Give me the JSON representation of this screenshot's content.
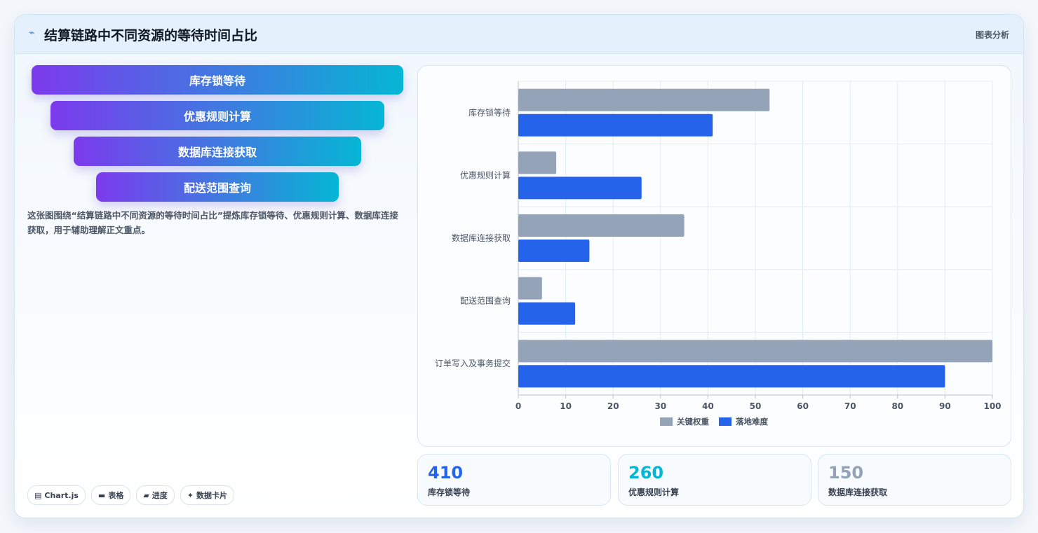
{
  "header": {
    "icon": "sparkline-icon",
    "icon_glyph": "⌁",
    "title": "结算链路中不同资源的等待时间占比",
    "tag": "图表分析"
  },
  "funnel": {
    "items": [
      "库存锁等待",
      "优惠规则计算",
      "数据库连接获取",
      "配送范围查询"
    ]
  },
  "description": "这张图围绕“结算链路中不同资源的等待时间占比”提炼库存锁等待、优惠规则计算、数据库连接获取，用于辅助理解正文重点。",
  "chips": [
    {
      "icon": "chart-icon",
      "glyph": "▤",
      "label": "Chart.js"
    },
    {
      "icon": "table-icon",
      "glyph": "▬",
      "label": "表格"
    },
    {
      "icon": "progress-icon",
      "glyph": "▰",
      "label": "进度"
    },
    {
      "icon": "card-icon",
      "glyph": "✦",
      "label": "数据卡片"
    }
  ],
  "stats": [
    {
      "value": "410",
      "label": "库存锁等待",
      "color": "#2563eb"
    },
    {
      "value": "260",
      "label": "优惠规则计算",
      "color": "#06b6d4"
    },
    {
      "value": "150",
      "label": "数据库连接获取",
      "color": "#94a3b8"
    }
  ],
  "chart_data": {
    "type": "bar",
    "orientation": "horizontal",
    "categories": [
      "库存锁等待",
      "优惠规则计算",
      "数据库连接获取",
      "配送范围查询",
      "订单写入及事务提交"
    ],
    "series": [
      {
        "name": "关键权重",
        "values": [
          53,
          8,
          35,
          5,
          100
        ],
        "color": "#94a3b8"
      },
      {
        "name": "落地难度",
        "values": [
          41,
          26,
          15,
          12,
          90
        ],
        "color": "#2563eb"
      }
    ],
    "xlim": [
      0,
      100
    ],
    "xticks": [
      0,
      10,
      20,
      30,
      40,
      50,
      60,
      70,
      80,
      90,
      100
    ],
    "grid": true,
    "legend": "bottom"
  }
}
